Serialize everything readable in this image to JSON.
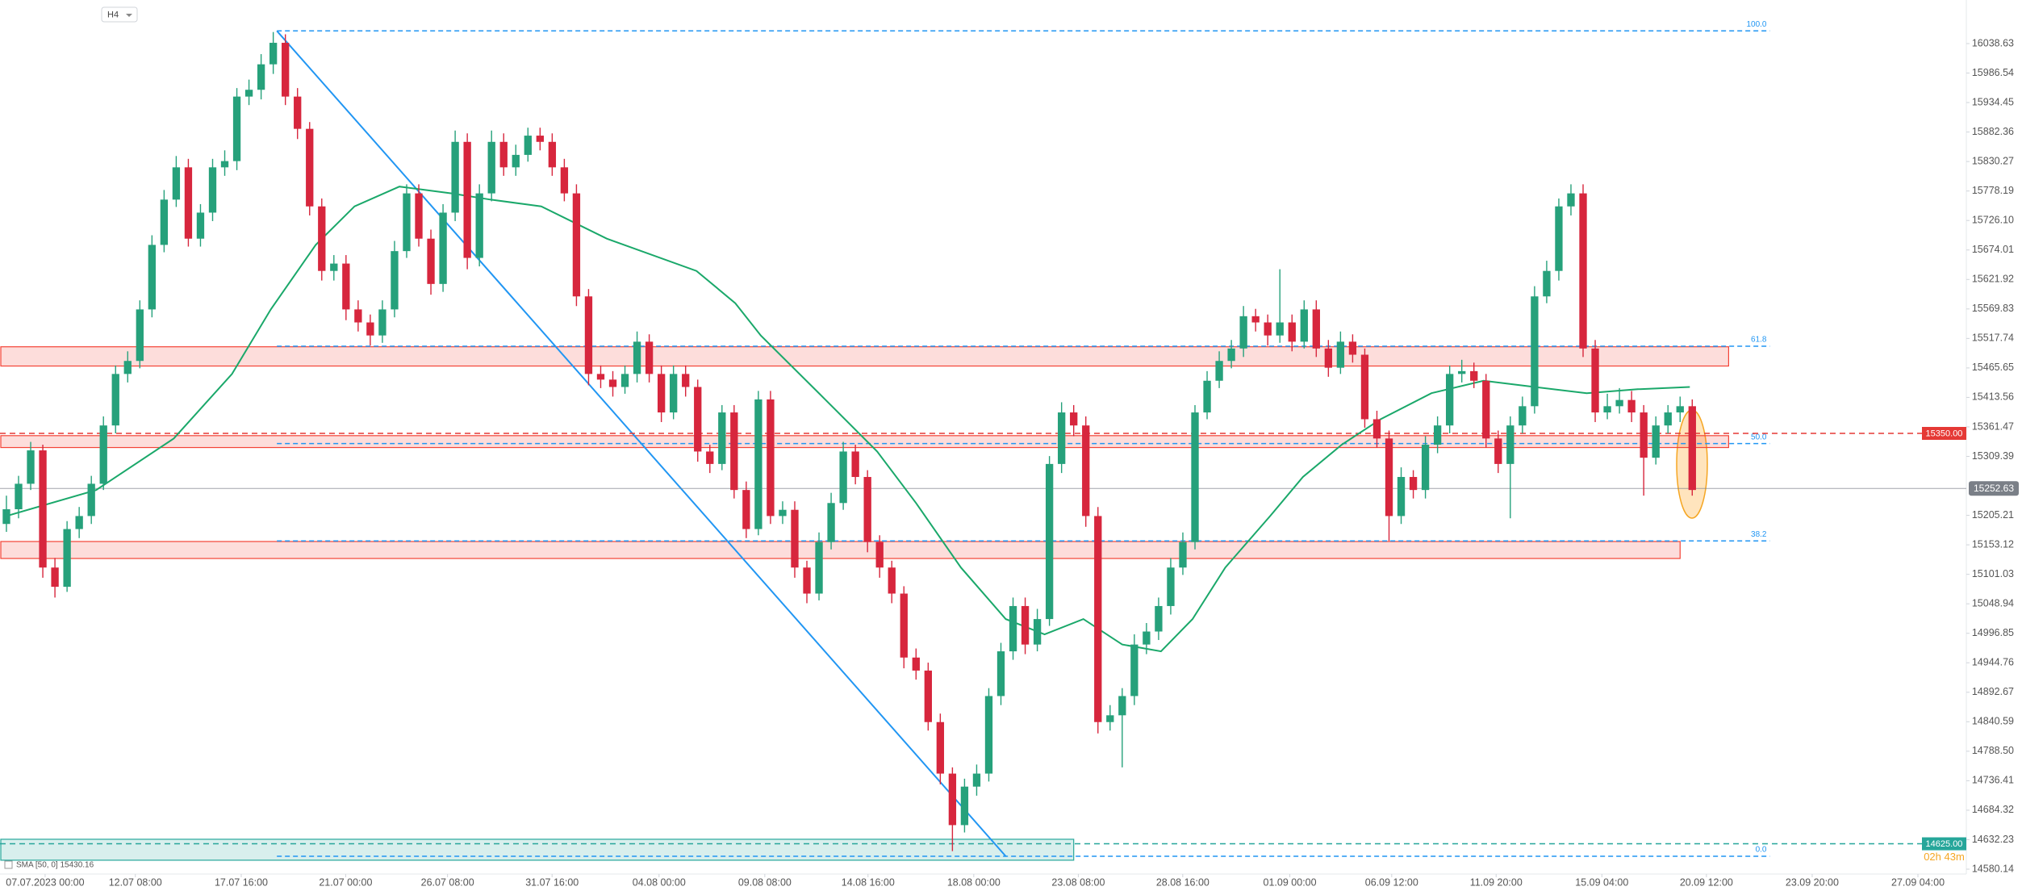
{
  "chart_data": {
    "type": "candlestick",
    "timeframe": "H4",
    "xlim": [
      -0.53,
      161.6
    ],
    "ylim": [
      14571.6,
      16115.6
    ],
    "xticks": [
      {
        "value": 3.19,
        "label": "07.07.2023 00:00"
      },
      {
        "value": 10.63,
        "label": "12.07 08:00"
      },
      {
        "value": 19.36,
        "label": "17.07 16:00"
      },
      {
        "value": 27.97,
        "label": "21.07 00:00"
      },
      {
        "value": 36.37,
        "label": "26.07 08:00"
      },
      {
        "value": 44.99,
        "label": "31.07 16:00"
      },
      {
        "value": 53.81,
        "label": "04.08 00:00"
      },
      {
        "value": 62.53,
        "label": "09.08 08:00"
      },
      {
        "value": 71.04,
        "label": "14.08 16:00"
      },
      {
        "value": 79.76,
        "label": "18.08 00:00"
      },
      {
        "value": 88.38,
        "label": "23.08 08:00"
      },
      {
        "value": 96.99,
        "label": "28.08 16:00"
      },
      {
        "value": 105.82,
        "label": "01.09 00:00"
      },
      {
        "value": 114.22,
        "label": "06.09 12:00"
      },
      {
        "value": 122.83,
        "label": "11.09 20:00"
      },
      {
        "value": 131.55,
        "label": "15.09 04:00"
      },
      {
        "value": 140.17,
        "label": "20.09 12:00"
      },
      {
        "value": 148.89,
        "label": "23.09 20:00"
      },
      {
        "value": 157.61,
        "label": "27.09 04:00"
      }
    ],
    "yticks": [
      16038.63,
      15986.54,
      15934.45,
      15882.36,
      15830.27,
      15778.19,
      {
        "value": 15726.1,
        "label": "15726.10"
      },
      15674.01,
      15621.92,
      15569.83,
      15517.74,
      15465.65,
      15413.56,
      15361.47,
      15309.39,
      15205.21,
      15153.12,
      15101.03,
      15048.94,
      14996.85,
      14944.76,
      14892.67,
      14840.59,
      {
        "value": 14788.5,
        "label": "14788.50"
      },
      14736.41,
      14684.32,
      14632.23,
      14580.14
    ],
    "up_color": "#26a17b",
    "down_color": "#d7263d",
    "candles": [
      [
        15190,
        15240,
        15176,
        15216
      ],
      [
        15216,
        15275,
        15200,
        15261
      ],
      [
        15261,
        15335,
        15250,
        15320
      ],
      [
        15320,
        15330,
        15095,
        15113
      ],
      [
        15113,
        15130,
        15060,
        15079
      ],
      [
        15079,
        15195,
        15070,
        15181
      ],
      [
        15181,
        15220,
        15165,
        15204
      ],
      [
        15204,
        15275,
        15190,
        15261
      ],
      [
        15261,
        15380,
        15250,
        15364
      ],
      [
        15364,
        15470,
        15350,
        15455
      ],
      [
        15455,
        15495,
        15440,
        15478
      ],
      [
        15478,
        15585,
        15465,
        15569
      ],
      [
        15569,
        15700,
        15555,
        15683
      ],
      [
        15683,
        15780,
        15670,
        15763
      ],
      [
        15763,
        15840,
        15750,
        15820
      ],
      [
        15820,
        15835,
        15680,
        15694
      ],
      [
        15694,
        15755,
        15680,
        15740
      ],
      [
        15740,
        15835,
        15725,
        15820
      ],
      [
        15820,
        15850,
        15805,
        15831
      ],
      [
        15831,
        15960,
        15815,
        15945
      ],
      [
        15945,
        15975,
        15930,
        15957
      ],
      [
        15957,
        16020,
        15940,
        16002
      ],
      [
        16002,
        16059,
        15985,
        16040
      ],
      [
        16040,
        16055,
        15930,
        15945
      ],
      [
        15945,
        15960,
        15870,
        15888
      ],
      [
        15888,
        15900,
        15735,
        15751
      ],
      [
        15751,
        15765,
        15620,
        15637
      ],
      [
        15637,
        15665,
        15620,
        15650
      ],
      [
        15650,
        15665,
        15550,
        15569
      ],
      [
        15569,
        15585,
        15530,
        15546
      ],
      [
        15546,
        15560,
        15505,
        15523
      ],
      [
        15523,
        15585,
        15510,
        15569
      ],
      [
        15569,
        15690,
        15555,
        15672
      ],
      [
        15672,
        15790,
        15660,
        15774
      ],
      [
        15774,
        15790,
        15680,
        15694
      ],
      [
        15694,
        15710,
        15595,
        15614
      ],
      [
        15614,
        15755,
        15600,
        15740
      ],
      [
        15740,
        15885,
        15725,
        15865
      ],
      [
        15865,
        15880,
        15640,
        15660
      ],
      [
        15660,
        15790,
        15645,
        15774
      ],
      [
        15774,
        15885,
        15760,
        15865
      ],
      [
        15865,
        15880,
        15805,
        15820
      ],
      [
        15820,
        15860,
        15805,
        15842
      ],
      [
        15842,
        15890,
        15830,
        15876
      ],
      [
        15876,
        15890,
        15850,
        15865
      ],
      [
        15865,
        15880,
        15805,
        15820
      ],
      [
        15820,
        15835,
        15760,
        15774
      ],
      [
        15774,
        15790,
        15575,
        15592
      ],
      [
        15592,
        15605,
        15435,
        15455
      ],
      [
        15455,
        15470,
        15430,
        15445
      ],
      [
        15445,
        15460,
        15415,
        15432
      ],
      [
        15432,
        15470,
        15420,
        15455
      ],
      [
        15455,
        15530,
        15440,
        15512
      ],
      [
        15512,
        15525,
        15440,
        15455
      ],
      [
        15455,
        15470,
        15370,
        15387
      ],
      [
        15387,
        15470,
        15375,
        15455
      ],
      [
        15455,
        15470,
        15415,
        15432
      ],
      [
        15432,
        15445,
        15300,
        15318
      ],
      [
        15318,
        15330,
        15280,
        15296
      ],
      [
        15296,
        15400,
        15285,
        15387
      ],
      [
        15387,
        15400,
        15235,
        15250
      ],
      [
        15250,
        15265,
        15165,
        15181
      ],
      [
        15181,
        15425,
        15170,
        15410
      ],
      [
        15410,
        15425,
        15190,
        15204
      ],
      [
        15204,
        15230,
        15190,
        15215
      ],
      [
        15215,
        15230,
        15095,
        15113
      ],
      [
        15113,
        15125,
        15050,
        15067
      ],
      [
        15067,
        15175,
        15055,
        15158
      ],
      [
        15158,
        15245,
        15145,
        15227
      ],
      [
        15227,
        15335,
        15215,
        15318
      ],
      [
        15318,
        15330,
        15260,
        15273
      ],
      [
        15273,
        15285,
        15140,
        15158
      ],
      [
        15158,
        15170,
        15095,
        15113
      ],
      [
        15113,
        15125,
        15050,
        15067
      ],
      [
        15067,
        15080,
        14935,
        14954
      ],
      [
        14954,
        14970,
        14915,
        14931
      ],
      [
        14931,
        14945,
        14825,
        14840
      ],
      [
        14840,
        14855,
        14730,
        14749
      ],
      [
        14749,
        14760,
        14612,
        14658
      ],
      [
        14658,
        14740,
        14645,
        14726
      ],
      [
        14726,
        14765,
        14710,
        14749
      ],
      [
        14749,
        14900,
        14735,
        14886
      ],
      [
        14886,
        14980,
        14870,
        14965
      ],
      [
        14965,
        15060,
        14950,
        15045
      ],
      [
        15045,
        15060,
        14960,
        14977
      ],
      [
        14977,
        15040,
        14965,
        15022
      ],
      [
        15022,
        15310,
        15010,
        15296
      ],
      [
        15296,
        15405,
        15280,
        15387
      ],
      [
        15387,
        15400,
        15345,
        15364
      ],
      [
        15364,
        15380,
        15185,
        15204
      ],
      [
        15204,
        15220,
        14820,
        14840
      ],
      [
        14840,
        14870,
        14825,
        14852
      ],
      [
        14852,
        14900,
        14760,
        14886
      ],
      [
        14886,
        14995,
        14870,
        14977
      ],
      [
        14977,
        15015,
        14960,
        15000
      ],
      [
        15000,
        15060,
        14985,
        15045
      ],
      [
        15045,
        15130,
        15030,
        15113
      ],
      [
        15113,
        15175,
        15100,
        15158
      ],
      [
        15158,
        15400,
        15145,
        15387
      ],
      [
        15387,
        15460,
        15375,
        15443
      ],
      [
        15443,
        15495,
        15430,
        15478
      ],
      [
        15478,
        15515,
        15465,
        15500
      ],
      [
        15500,
        15575,
        15485,
        15557
      ],
      [
        15557,
        15570,
        15530,
        15546
      ],
      [
        15546,
        15560,
        15505,
        15523
      ],
      [
        15523,
        15640,
        15510,
        15546
      ],
      [
        15546,
        15560,
        15495,
        15512
      ],
      [
        15512,
        15585,
        15500,
        15569
      ],
      [
        15569,
        15585,
        15485,
        15500
      ],
      [
        15500,
        15515,
        15450,
        15466
      ],
      [
        15466,
        15530,
        15455,
        15512
      ],
      [
        15512,
        15525,
        15475,
        15489
      ],
      [
        15489,
        15500,
        15360,
        15375
      ],
      [
        15375,
        15390,
        15325,
        15341
      ],
      [
        15341,
        15355,
        15160,
        15204
      ],
      [
        15204,
        15290,
        15190,
        15273
      ],
      [
        15273,
        15285,
        15235,
        15250
      ],
      [
        15250,
        15345,
        15235,
        15330
      ],
      [
        15330,
        15380,
        15315,
        15364
      ],
      [
        15364,
        15470,
        15350,
        15455
      ],
      [
        15455,
        15480,
        15440,
        15460
      ],
      [
        15460,
        15475,
        15430,
        15443
      ],
      [
        15443,
        15455,
        15325,
        15341
      ],
      [
        15341,
        15355,
        15280,
        15296
      ],
      [
        15296,
        15380,
        15200,
        15364
      ],
      [
        15364,
        15415,
        15350,
        15398
      ],
      [
        15398,
        15610,
        15385,
        15592
      ],
      [
        15592,
        15655,
        15580,
        15637
      ],
      [
        15637,
        15765,
        15620,
        15751
      ],
      [
        15751,
        15790,
        15735,
        15774
      ],
      [
        15774,
        15790,
        15485,
        15500
      ],
      [
        15500,
        15515,
        15370,
        15387
      ],
      [
        15387,
        15420,
        15375,
        15398
      ],
      [
        15398,
        15430,
        15385,
        15409
      ],
      [
        15409,
        15425,
        15370,
        15387
      ],
      [
        15387,
        15400,
        15240,
        15307
      ],
      [
        15307,
        15380,
        15295,
        15364
      ],
      [
        15364,
        15400,
        15350,
        15387
      ],
      [
        15387,
        15415,
        15370,
        15398
      ],
      [
        15398,
        15410,
        15240,
        15250
      ]
    ],
    "sma": {
      "name": "SMA [50, 0] 15430.16",
      "color": "#1aa86a",
      "x": [
        0,
        7.4,
        13.8,
        18.6,
        21.8,
        25.5,
        28.7,
        32.4,
        36.7,
        39.9,
        44.1,
        49.5,
        56.9,
        60.1,
        62.2,
        67.5,
        71.8,
        75.0,
        78.7,
        82.4,
        85.6,
        88.8,
        92.0,
        95.2,
        97.8,
        100.5,
        104.2,
        106.9,
        110.1,
        113.3,
        117.5,
        121.8,
        126.0,
        130.3,
        134.5,
        138.8
      ],
      "values": [
        15204,
        15250,
        15341,
        15455,
        15569,
        15683,
        15751,
        15786,
        15774,
        15763,
        15751,
        15694,
        15637,
        15580,
        15523,
        15410,
        15318,
        15227,
        15113,
        15022,
        14995,
        15022,
        14977,
        14965,
        15022,
        15113,
        15204,
        15273,
        15330,
        15375,
        15421,
        15443,
        15432,
        15421,
        15428,
        15432
      ]
    },
    "zones": [
      {
        "low": 15469,
        "high": 15503,
        "end": 142.0,
        "color": "#f44336"
      },
      {
        "low": 15325,
        "high": 15346,
        "end": 142.0,
        "color": "#f44336"
      },
      {
        "low": 15129,
        "high": 15159,
        "end": 138.0,
        "color": "#f44336"
      },
      {
        "low": 14596,
        "high": 14633,
        "end": 88.0,
        "color": "#26a69a"
      }
    ],
    "fib": {
      "color": "#2196f3",
      "x": [
        22.3,
        145.4
      ],
      "diagonal_x": [
        22.3,
        82.4
      ],
      "levels": [
        {
          "price": 16061,
          "label": "100.0"
        },
        {
          "price": 15504,
          "label": "61.8"
        },
        {
          "price": 15332,
          "label": "50.0"
        },
        {
          "price": 15160,
          "label": "38.2"
        },
        {
          "price": 14603,
          "label": "0.0"
        }
      ]
    },
    "price_lines": [
      {
        "value": 15350,
        "label": "15350.00",
        "color": "#e53935"
      },
      {
        "value": 14625,
        "label": "14625.00",
        "color": "#26a69a"
      }
    ],
    "last_price": {
      "value": 15252.63,
      "label": "15252.63",
      "color": "#7a7f87"
    },
    "countdown": {
      "text": "02h 43m",
      "color": "#f5a623"
    }
  }
}
